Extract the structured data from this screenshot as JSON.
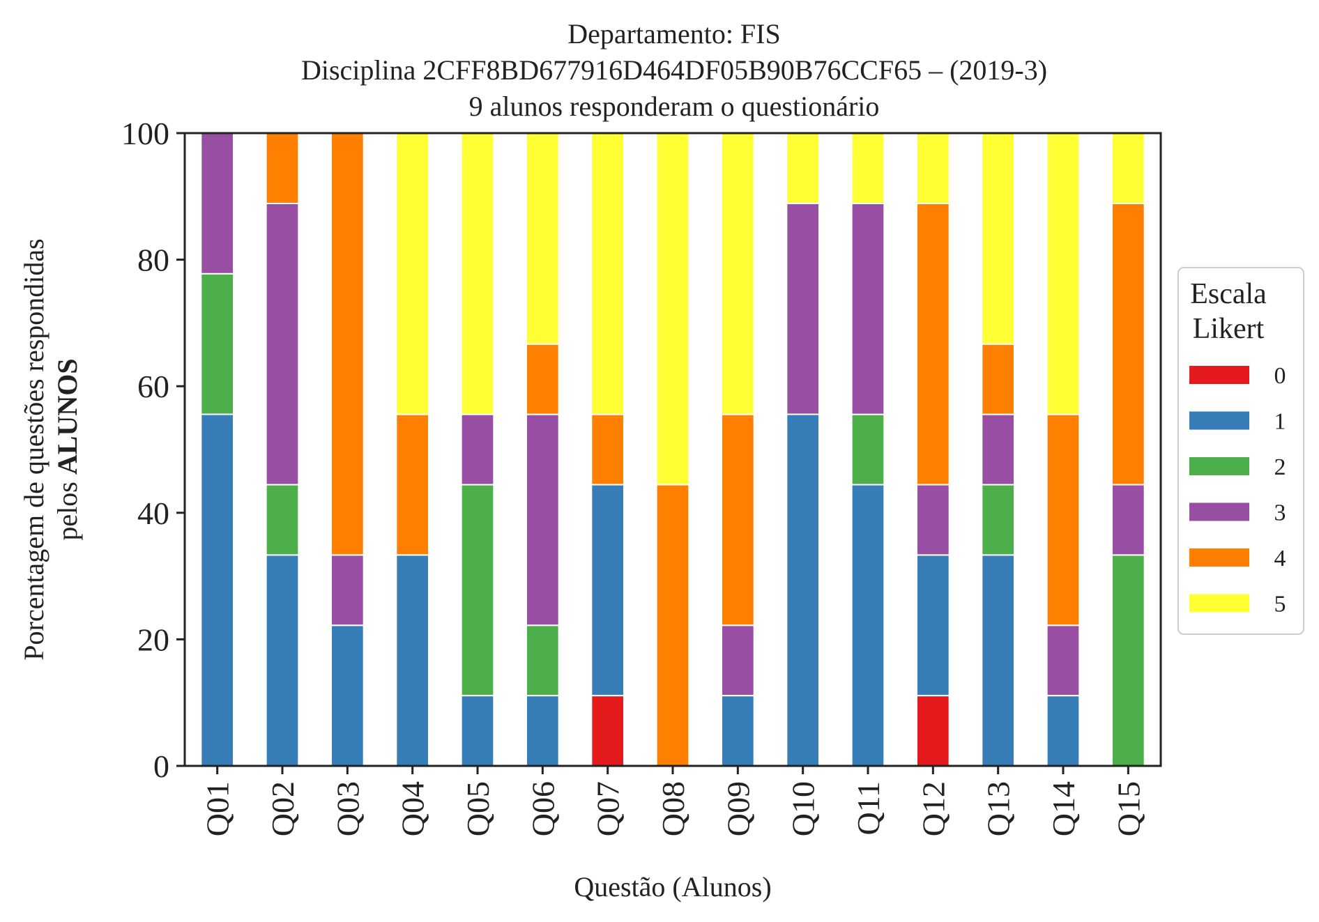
{
  "chart_data": {
    "type": "bar",
    "stacked": true,
    "title_lines": [
      "Departamento: FIS",
      "Disciplina 2CFF8BD677916D464DF05B90B76CCF65 – (2019-3)",
      "9 alunos responderam o questionário"
    ],
    "xlabel": "Questão (Alunos)",
    "ylabel_line1": "Porcentagem de questões respondidas",
    "ylabel_line2_prefix": "pelos ",
    "ylabel_line2_bold": "ALUNOS",
    "ylim": [
      0,
      100
    ],
    "yticks": [
      0,
      20,
      40,
      60,
      80,
      100
    ],
    "grid": false,
    "legend": {
      "title_lines": [
        "Escala",
        "Likert"
      ],
      "placement": "center-right outside"
    },
    "categories": [
      "Q01",
      "Q02",
      "Q03",
      "Q04",
      "Q05",
      "Q06",
      "Q07",
      "Q08",
      "Q09",
      "Q10",
      "Q11",
      "Q12",
      "Q13",
      "Q14",
      "Q15"
    ],
    "series": [
      {
        "name": "0",
        "color": "#e41a1c",
        "values": [
          0,
          0,
          0,
          0,
          0,
          0,
          11.11,
          0,
          0,
          0,
          0,
          11.11,
          0,
          0,
          0
        ]
      },
      {
        "name": "1",
        "color": "#377eb8",
        "values": [
          55.56,
          33.33,
          22.22,
          33.33,
          11.11,
          11.11,
          33.33,
          0,
          11.11,
          55.56,
          44.44,
          22.22,
          33.33,
          11.11,
          0
        ]
      },
      {
        "name": "2",
        "color": "#4daf4a",
        "values": [
          22.22,
          11.11,
          0,
          0,
          33.33,
          11.11,
          0,
          0,
          0,
          0,
          11.11,
          0,
          11.11,
          0,
          33.33
        ]
      },
      {
        "name": "3",
        "color": "#984ea3",
        "values": [
          22.22,
          44.44,
          11.11,
          0,
          11.11,
          33.33,
          0,
          0,
          11.11,
          33.33,
          33.33,
          11.11,
          11.11,
          11.11,
          11.11
        ]
      },
      {
        "name": "4",
        "color": "#ff7f00",
        "values": [
          0,
          11.11,
          66.67,
          22.22,
          0,
          11.11,
          11.11,
          44.44,
          33.33,
          0,
          0,
          44.44,
          11.11,
          33.33,
          44.44
        ]
      },
      {
        "name": "5",
        "color": "#ffff33",
        "values": [
          0,
          0,
          0,
          44.44,
          44.44,
          33.33,
          44.44,
          55.56,
          44.44,
          11.11,
          11.11,
          11.11,
          33.33,
          44.44,
          11.11
        ]
      }
    ]
  }
}
